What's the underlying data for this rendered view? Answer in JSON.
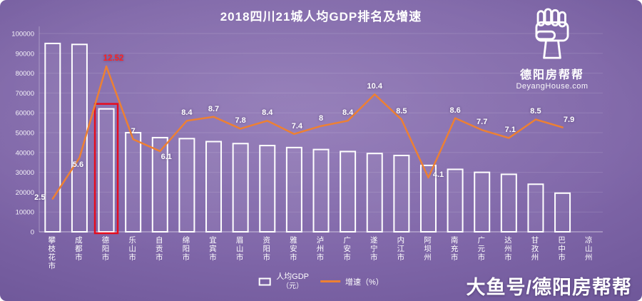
{
  "title": "2018四川21城人均GDP排名及增速",
  "watermark": {
    "brand": "德阳房帮帮",
    "url": "DeyangHouse.com"
  },
  "footer": {
    "text": "大鱼号/德阳房帮帮"
  },
  "legend": [
    {
      "label": "人均GDP",
      "sublabel": "（元）"
    },
    {
      "label": "增速（%）"
    }
  ],
  "colors": {
    "background_purple": "#6f5899",
    "bar_border": "#ffffff",
    "line_orange": "#ed8033",
    "highlight_red": "#e60d1e",
    "peak_label_red": "#ff2222"
  },
  "left_axis": {
    "ticks": [
      0,
      10000,
      20000,
      30000,
      40000,
      50000,
      60000,
      70000,
      80000,
      90000,
      100000
    ],
    "ylim": [
      0,
      100000
    ]
  },
  "right_axis": {
    "ylim": [
      0,
      15
    ]
  },
  "chart_data": {
    "type": "combo",
    "title": "2018四川21城人均GDP排名及增速",
    "categories": [
      "攀枝花市",
      "成都市",
      "德阳市",
      "乐山市",
      "自贡市",
      "绵阳市",
      "宜宾市",
      "眉山市",
      "资阳市",
      "雅安市",
      "泸州市",
      "广安市",
      "遂宁市",
      "内江市",
      "阿坝州",
      "南充市",
      "广元市",
      "达州市",
      "甘孜州",
      "巴中市",
      "凉山州"
    ],
    "series": [
      {
        "name": "人均GDP（元）",
        "type": "bar",
        "axis": "left",
        "values": [
          95000,
          94500,
          62000,
          50000,
          47500,
          47000,
          45500,
          44500,
          43500,
          42500,
          41500,
          40500,
          39500,
          38500,
          33500,
          31500,
          30000,
          29000,
          24000,
          19500,
          null
        ]
      },
      {
        "name": "增速（%）",
        "type": "line",
        "axis": "right",
        "values": [
          2.5,
          5.6,
          12.52,
          7,
          6.1,
          8.4,
          8.7,
          7.8,
          8.4,
          7.4,
          8,
          8.4,
          10.4,
          8.5,
          4.1,
          8.6,
          7.7,
          7.1,
          8.5,
          7.9,
          null
        ]
      }
    ],
    "highlight_category": "德阳市",
    "legend_position": "bottom",
    "grid": true
  }
}
